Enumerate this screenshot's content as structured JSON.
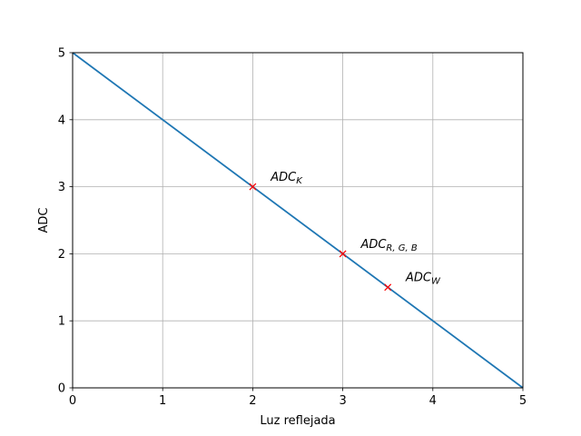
{
  "chart_data": {
    "type": "line",
    "xlabel": "Luz reflejada",
    "ylabel": "ADC",
    "xlim": [
      0,
      5
    ],
    "ylim": [
      0,
      5
    ],
    "xticks": [
      0,
      1,
      2,
      3,
      4,
      5
    ],
    "yticks": [
      0,
      1,
      2,
      3,
      4,
      5
    ],
    "grid": true,
    "series": [
      {
        "x": [
          0,
          5
        ],
        "y": [
          5,
          0
        ],
        "color": "#1f77b4"
      }
    ],
    "markers": [
      {
        "x": 2,
        "y": 3,
        "color": "#ff0000",
        "label_main": "ADC",
        "label_sub": "K"
      },
      {
        "x": 3,
        "y": 2,
        "color": "#ff0000",
        "label_main": "ADC",
        "label_sub": "R, G, B"
      },
      {
        "x": 3.5,
        "y": 1.5,
        "color": "#ff0000",
        "label_main": "ADC",
        "label_sub": "W"
      }
    ]
  }
}
